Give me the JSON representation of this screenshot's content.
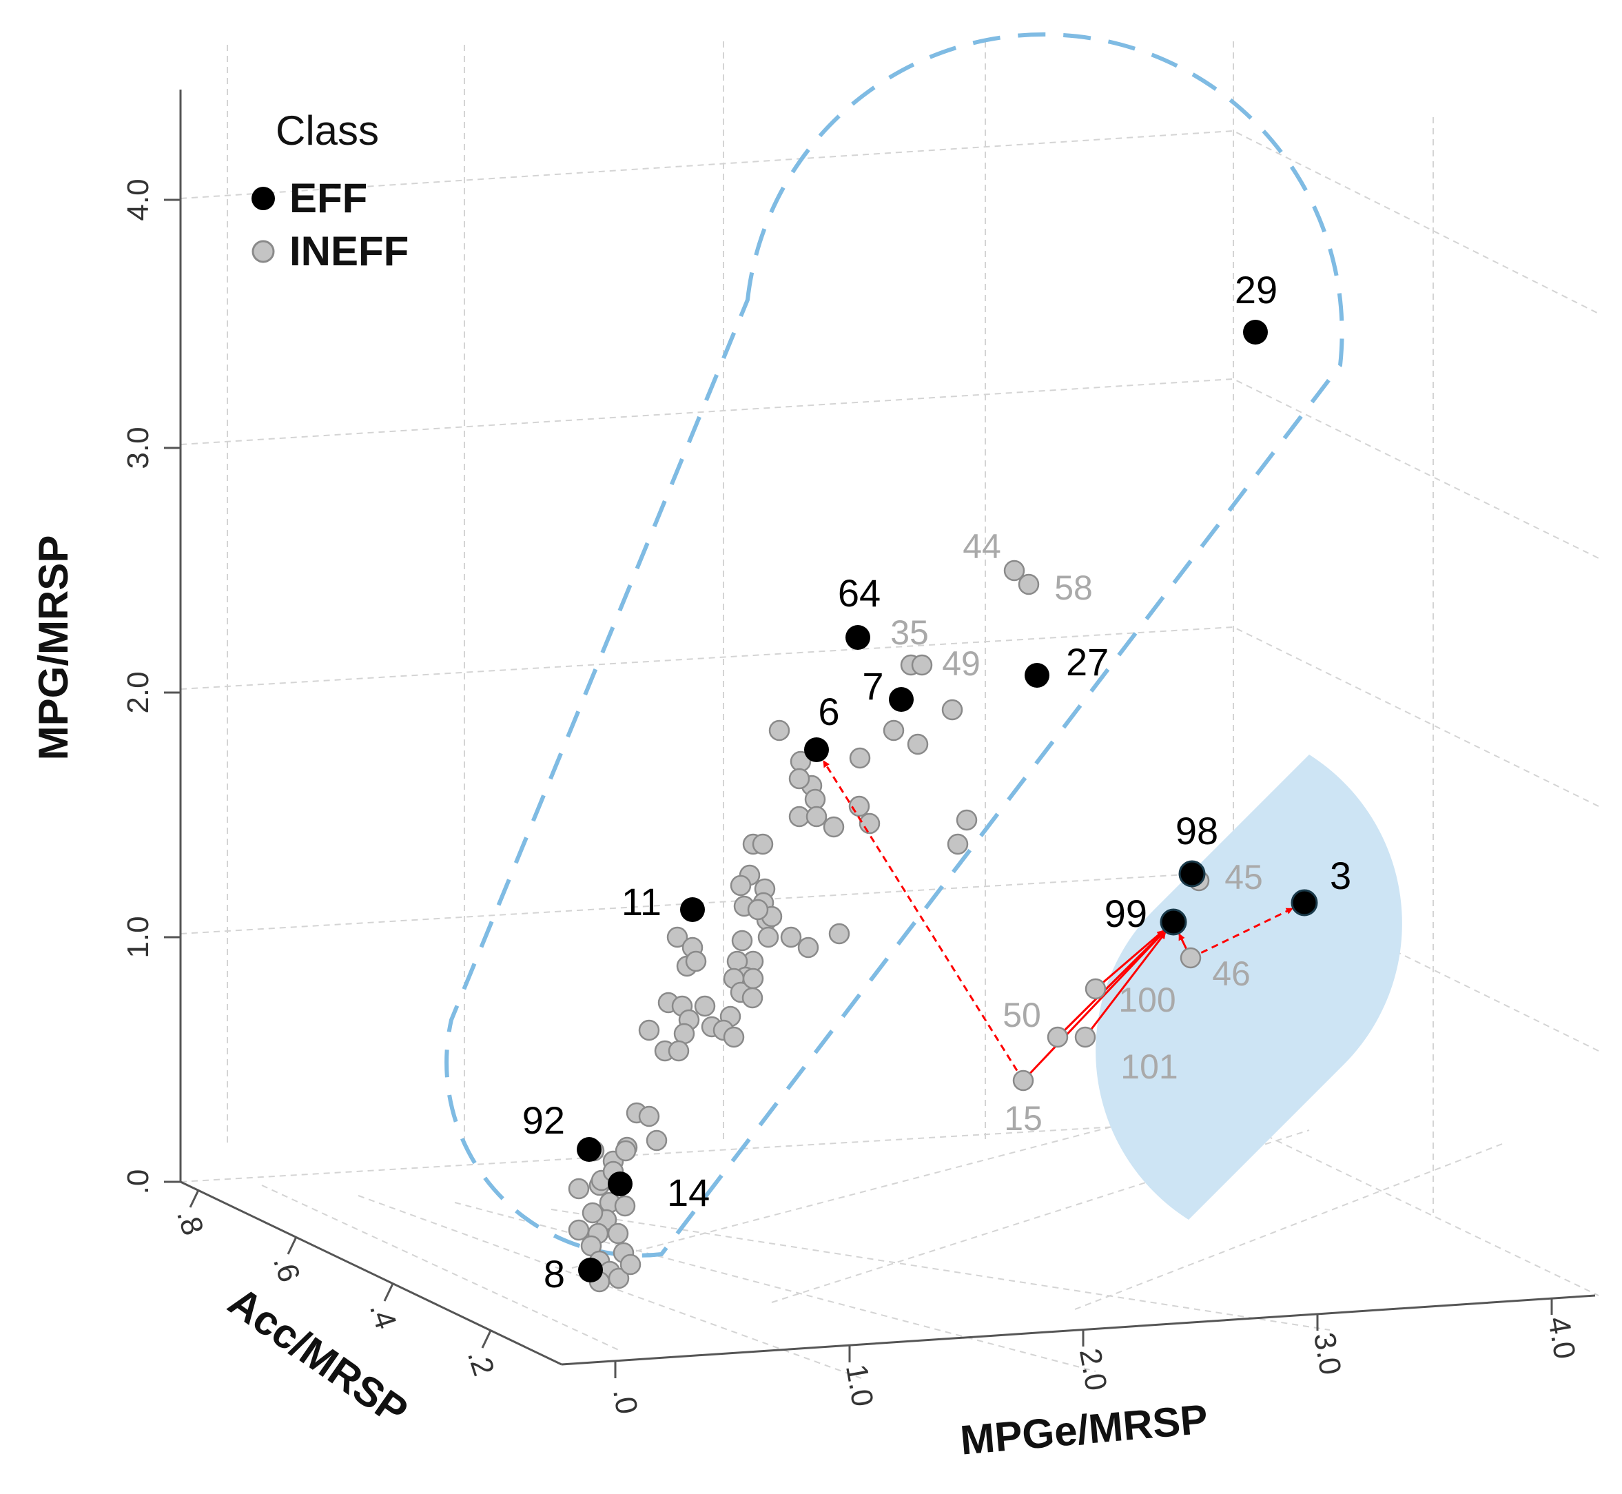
{
  "chart_data": {
    "type": "scatter",
    "projection": "3d",
    "xlabel": "MPGe/MRSP",
    "ylabel": "MPG/MRSP",
    "zlabel": "Acc/MRSP",
    "x_ticks": [
      ".0",
      "1.0",
      "2.0",
      "3.0",
      "4.0"
    ],
    "y_ticks": [
      ".0",
      "1.0",
      "2.0",
      "3.0",
      "4.0"
    ],
    "z_ticks": [
      ".2",
      ".4",
      ".6",
      ".8"
    ],
    "xlim": [
      0,
      4.0
    ],
    "ylim": [
      0,
      4.0
    ],
    "zlim": [
      0.2,
      0.8
    ],
    "legend": {
      "title": "Class",
      "position": "top-left",
      "entries": [
        {
          "label": "EFF",
          "color": "#000000"
        },
        {
          "label": "INEFF",
          "color": "#c4c4c4"
        }
      ]
    },
    "colors": {
      "eff": "#000000",
      "ineff": "#c4c4c4",
      "ineff_edge": "#8a8a8a",
      "arrow": "#ff0000",
      "cluster": "#7fbbe3",
      "highlight": "#cde4f4",
      "eff_label": "#000000",
      "ineff_label": "#a9a9a9"
    },
    "series": [
      {
        "name": "EFF",
        "points": [
          {
            "label": "29",
            "x": 2.75,
            "y": 3.45,
            "z": 0.55
          },
          {
            "label": "64",
            "x": 1.1,
            "y": 2.2,
            "z": 0.55
          },
          {
            "label": "7",
            "x": 1.25,
            "y": 1.95,
            "z": 0.55
          },
          {
            "label": "27",
            "x": 1.8,
            "y": 2.05,
            "z": 0.55
          },
          {
            "label": "6",
            "x": 0.9,
            "y": 1.75,
            "z": 0.55
          },
          {
            "label": "11",
            "x": 0.35,
            "y": 1.1,
            "z": 0.6
          },
          {
            "label": "92",
            "x": 0.05,
            "y": 0.12,
            "z": 0.7
          },
          {
            "label": "14",
            "x": 0.15,
            "y": 0.0,
            "z": 0.65
          },
          {
            "label": "8",
            "x": 0.05,
            "y": -0.35,
            "z": 0.65
          },
          {
            "label": "98",
            "x": 2.6,
            "y": 1.25,
            "z": 0.5
          },
          {
            "label": "99",
            "x": 2.45,
            "y": 1.05,
            "z": 0.5
          },
          {
            "label": "3",
            "x": 3.0,
            "y": 1.1,
            "z": 0.45
          }
        ]
      },
      {
        "name": "INEFF",
        "labeled_points": [
          {
            "label": "44",
            "x": 1.8,
            "y": 2.5,
            "z": 0.5
          },
          {
            "label": "58",
            "x": 1.85,
            "y": 2.45,
            "z": 0.5
          },
          {
            "label": "35",
            "x": 1.2,
            "y": 2.1,
            "z": 0.55
          },
          {
            "label": "49",
            "x": 1.3,
            "y": 2.1,
            "z": 0.55
          },
          {
            "label": "45",
            "x": 2.62,
            "y": 1.22,
            "z": 0.5
          },
          {
            "label": "46",
            "x": 2.55,
            "y": 0.9,
            "z": 0.5
          },
          {
            "label": "100",
            "x": 2.05,
            "y": 0.75,
            "z": 0.5
          },
          {
            "label": "50",
            "x": 1.9,
            "y": 0.6,
            "z": 0.5
          },
          {
            "label": "101",
            "x": 2.0,
            "y": 0.6,
            "z": 0.5
          },
          {
            "label": "15",
            "x": 1.8,
            "y": 0.4,
            "z": 0.5
          }
        ],
        "unlabeled_count": 79
      }
    ],
    "projections": [
      {
        "from": "15",
        "to": "6",
        "style": "dashed"
      },
      {
        "from": "15",
        "to": "99",
        "style": "solid"
      },
      {
        "from": "50",
        "to": "99",
        "style": "solid"
      },
      {
        "from": "100",
        "to": "99",
        "style": "solid"
      },
      {
        "from": "101",
        "to": "99",
        "style": "solid"
      },
      {
        "from": "45",
        "to": "98",
        "style": "solid"
      },
      {
        "from": "46",
        "to": "99",
        "style": "solid"
      },
      {
        "from": "46",
        "to": "3",
        "style": "dashed"
      }
    ]
  }
}
